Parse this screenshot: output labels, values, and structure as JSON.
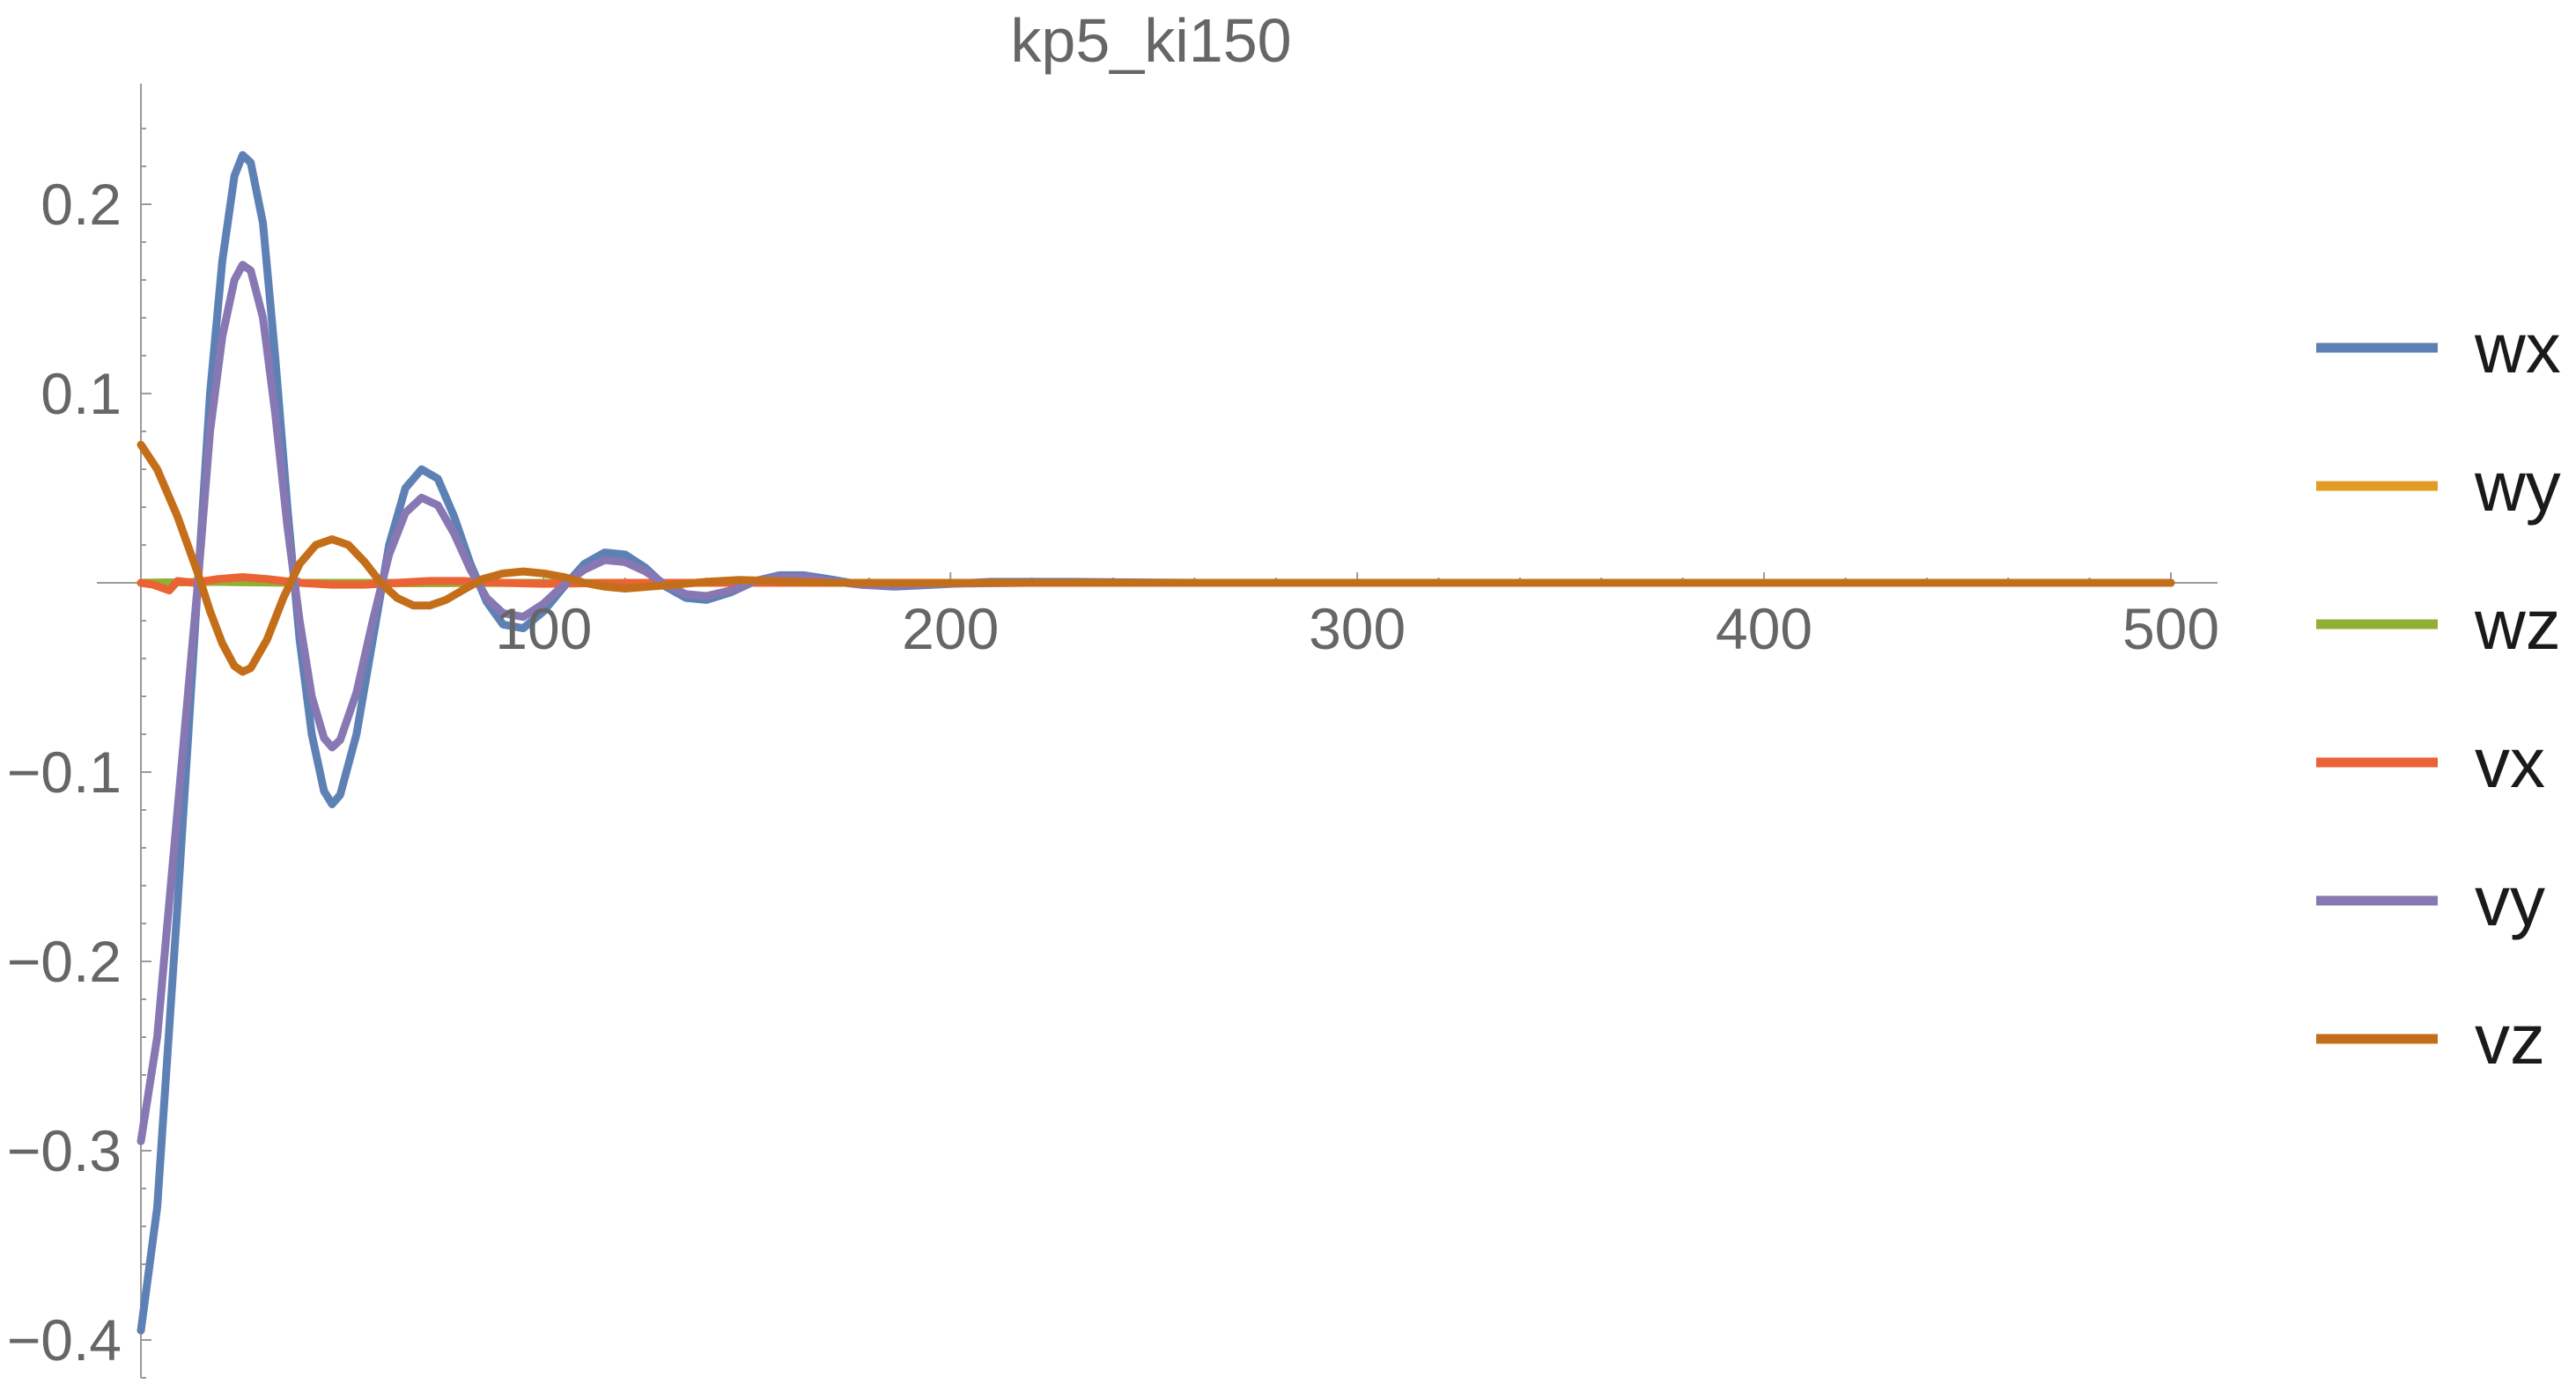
{
  "chart_data": {
    "type": "line",
    "title": "kp5_ki150",
    "xlabel": "",
    "ylabel": "",
    "xlim": [
      1,
      500
    ],
    "ylim": [
      -0.42,
      0.26
    ],
    "x_ticks": [
      {
        "value": 100,
        "label": "100"
      },
      {
        "value": 200,
        "label": "200"
      },
      {
        "value": 300,
        "label": "300"
      },
      {
        "value": 400,
        "label": "400"
      },
      {
        "value": 500,
        "label": "500"
      }
    ],
    "y_ticks": [
      {
        "value": 0.2,
        "label": "0.2"
      },
      {
        "value": 0.1,
        "label": "0.1"
      },
      {
        "value": -0.1,
        "label": "−0.1"
      },
      {
        "value": -0.2,
        "label": "−0.2"
      },
      {
        "value": -0.3,
        "label": "−0.3"
      },
      {
        "value": -0.4,
        "label": "−0.4"
      }
    ],
    "grid": false,
    "legend_position": "right",
    "series": [
      {
        "name": "wx",
        "color": "#5e81b5",
        "points": [
          [
            1,
            -0.395
          ],
          [
            5,
            -0.33
          ],
          [
            10,
            -0.17
          ],
          [
            15,
            0.0
          ],
          [
            18,
            0.1
          ],
          [
            21,
            0.17
          ],
          [
            24,
            0.215
          ],
          [
            26,
            0.226
          ],
          [
            28,
            0.222
          ],
          [
            31,
            0.19
          ],
          [
            34,
            0.12
          ],
          [
            37,
            0.04
          ],
          [
            40,
            -0.03
          ],
          [
            43,
            -0.08
          ],
          [
            46,
            -0.11
          ],
          [
            48,
            -0.117
          ],
          [
            50,
            -0.112
          ],
          [
            54,
            -0.08
          ],
          [
            58,
            -0.03
          ],
          [
            62,
            0.02
          ],
          [
            66,
            0.05
          ],
          [
            70,
            0.06
          ],
          [
            74,
            0.055
          ],
          [
            78,
            0.035
          ],
          [
            82,
            0.01
          ],
          [
            86,
            -0.01
          ],
          [
            90,
            -0.022
          ],
          [
            95,
            -0.024
          ],
          [
            100,
            -0.015
          ],
          [
            105,
            -0.002
          ],
          [
            110,
            0.01
          ],
          [
            115,
            0.016
          ],
          [
            120,
            0.015
          ],
          [
            125,
            0.008
          ],
          [
            130,
            -0.002
          ],
          [
            135,
            -0.008
          ],
          [
            140,
            -0.009
          ],
          [
            146,
            -0.005
          ],
          [
            152,
            0.001
          ],
          [
            158,
            0.004
          ],
          [
            164,
            0.004
          ],
          [
            170,
            0.002
          ],
          [
            178,
            -0.001
          ],
          [
            186,
            -0.002
          ],
          [
            196,
            -0.001
          ],
          [
            210,
            0.0005
          ],
          [
            230,
            0.0005
          ],
          [
            260,
            0.0
          ],
          [
            300,
            0.0
          ],
          [
            500,
            0.0
          ]
        ]
      },
      {
        "name": "wy",
        "color": "#e19c24",
        "points": [
          [
            1,
            0.0
          ],
          [
            20,
            0.0005
          ],
          [
            40,
            0.0
          ],
          [
            60,
            -0.0003
          ],
          [
            100,
            0.0
          ],
          [
            500,
            0.0
          ]
        ]
      },
      {
        "name": "wz",
        "color": "#8fb032",
        "points": [
          [
            1,
            0.0
          ],
          [
            20,
            0.0005
          ],
          [
            40,
            0.0
          ],
          [
            60,
            0.0
          ],
          [
            100,
            0.0
          ],
          [
            500,
            0.0
          ]
        ]
      },
      {
        "name": "vx",
        "color": "#eb6235",
        "points": [
          [
            1,
            0.0
          ],
          [
            4,
            -0.001
          ],
          [
            8,
            -0.004
          ],
          [
            10,
            0.001
          ],
          [
            14,
            0.0
          ],
          [
            20,
            0.002
          ],
          [
            26,
            0.003
          ],
          [
            32,
            0.002
          ],
          [
            40,
            0.0
          ],
          [
            48,
            -0.001
          ],
          [
            56,
            -0.001
          ],
          [
            64,
            0.0
          ],
          [
            72,
            0.001
          ],
          [
            80,
            0.001
          ],
          [
            90,
            0.0
          ],
          [
            100,
            -0.0005
          ],
          [
            120,
            0.0
          ],
          [
            500,
            0.0
          ]
        ]
      },
      {
        "name": "vy",
        "color": "#8778b3",
        "points": [
          [
            1,
            -0.295
          ],
          [
            5,
            -0.24
          ],
          [
            10,
            -0.12
          ],
          [
            15,
            0.0
          ],
          [
            18,
            0.08
          ],
          [
            21,
            0.13
          ],
          [
            24,
            0.16
          ],
          [
            26,
            0.168
          ],
          [
            28,
            0.165
          ],
          [
            31,
            0.14
          ],
          [
            34,
            0.09
          ],
          [
            37,
            0.03
          ],
          [
            40,
            -0.02
          ],
          [
            43,
            -0.06
          ],
          [
            46,
            -0.082
          ],
          [
            48,
            -0.087
          ],
          [
            50,
            -0.083
          ],
          [
            54,
            -0.058
          ],
          [
            58,
            -0.02
          ],
          [
            62,
            0.015
          ],
          [
            66,
            0.037
          ],
          [
            70,
            0.045
          ],
          [
            74,
            0.041
          ],
          [
            78,
            0.026
          ],
          [
            82,
            0.007
          ],
          [
            86,
            -0.008
          ],
          [
            90,
            -0.016
          ],
          [
            95,
            -0.018
          ],
          [
            100,
            -0.011
          ],
          [
            105,
            -0.001
          ],
          [
            110,
            0.007
          ],
          [
            115,
            0.012
          ],
          [
            120,
            0.011
          ],
          [
            125,
            0.006
          ],
          [
            130,
            -0.001
          ],
          [
            135,
            -0.006
          ],
          [
            140,
            -0.007
          ],
          [
            146,
            -0.004
          ],
          [
            152,
            0.001
          ],
          [
            158,
            0.003
          ],
          [
            164,
            0.003
          ],
          [
            170,
            0.001
          ],
          [
            178,
            -0.001
          ],
          [
            186,
            -0.0015
          ],
          [
            196,
            -0.0005
          ],
          [
            220,
            0.0
          ],
          [
            500,
            0.0
          ]
        ]
      },
      {
        "name": "vz",
        "color": "#c56e1a",
        "points": [
          [
            1,
            0.073
          ],
          [
            5,
            0.06
          ],
          [
            10,
            0.035
          ],
          [
            15,
            0.005
          ],
          [
            18,
            -0.015
          ],
          [
            21,
            -0.032
          ],
          [
            24,
            -0.044
          ],
          [
            26,
            -0.047
          ],
          [
            28,
            -0.045
          ],
          [
            32,
            -0.03
          ],
          [
            36,
            -0.008
          ],
          [
            40,
            0.01
          ],
          [
            44,
            0.02
          ],
          [
            48,
            0.023
          ],
          [
            52,
            0.02
          ],
          [
            56,
            0.011
          ],
          [
            60,
            0.0
          ],
          [
            64,
            -0.008
          ],
          [
            68,
            -0.012
          ],
          [
            72,
            -0.012
          ],
          [
            76,
            -0.009
          ],
          [
            80,
            -0.004
          ],
          [
            85,
            0.002
          ],
          [
            90,
            0.005
          ],
          [
            95,
            0.006
          ],
          [
            100,
            0.005
          ],
          [
            105,
            0.003
          ],
          [
            110,
            0.0
          ],
          [
            115,
            -0.002
          ],
          [
            120,
            -0.003
          ],
          [
            126,
            -0.002
          ],
          [
            132,
            -0.001
          ],
          [
            140,
            0.0005
          ],
          [
            148,
            0.0015
          ],
          [
            156,
            0.001
          ],
          [
            170,
            0.0
          ],
          [
            500,
            0.0
          ]
        ]
      }
    ]
  }
}
